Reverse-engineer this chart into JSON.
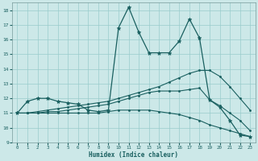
{
  "xlabel": "Humidex (Indice chaleur)",
  "xlim": [
    -0.5,
    23.5
  ],
  "ylim": [
    9,
    18.5
  ],
  "yticks": [
    9,
    10,
    11,
    12,
    13,
    14,
    15,
    16,
    17,
    18
  ],
  "xticks": [
    0,
    1,
    2,
    3,
    4,
    5,
    6,
    7,
    8,
    9,
    10,
    11,
    12,
    13,
    14,
    15,
    16,
    17,
    18,
    19,
    20,
    21,
    22,
    23
  ],
  "bg_color": "#cce8e8",
  "grid_color": "#99cccc",
  "line_color": "#1a6060",
  "series": [
    {
      "x": [
        0,
        1,
        2,
        3,
        4,
        5,
        6,
        7,
        8,
        9,
        10,
        11,
        12,
        13,
        14,
        15,
        16,
        17,
        18,
        19,
        20,
        21,
        22,
        23
      ],
      "y": [
        11.0,
        11.8,
        12.0,
        12.0,
        11.8,
        11.7,
        11.6,
        11.2,
        11.1,
        11.2,
        16.8,
        18.2,
        16.5,
        15.1,
        15.1,
        15.1,
        15.9,
        17.4,
        16.1,
        11.9,
        11.4,
        10.5,
        9.5,
        9.4
      ],
      "marker": "*",
      "markersize": 3.5,
      "lw": 0.9
    },
    {
      "x": [
        0,
        1,
        2,
        3,
        4,
        5,
        6,
        7,
        8,
        9,
        10,
        11,
        12,
        13,
        14,
        15,
        16,
        17,
        18,
        19,
        20,
        21,
        22,
        23
      ],
      "y": [
        11.0,
        11.0,
        11.1,
        11.2,
        11.3,
        11.4,
        11.5,
        11.6,
        11.7,
        11.8,
        12.0,
        12.2,
        12.4,
        12.6,
        12.8,
        13.1,
        13.4,
        13.7,
        13.9,
        13.9,
        13.5,
        12.8,
        12.0,
        11.2
      ],
      "marker": "o",
      "markersize": 1.5,
      "lw": 0.8
    },
    {
      "x": [
        0,
        1,
        2,
        3,
        4,
        5,
        6,
        7,
        8,
        9,
        10,
        11,
        12,
        13,
        14,
        15,
        16,
        17,
        18,
        19,
        20,
        21,
        22,
        23
      ],
      "y": [
        11.0,
        11.0,
        11.0,
        11.1,
        11.1,
        11.2,
        11.3,
        11.4,
        11.5,
        11.6,
        11.8,
        12.0,
        12.2,
        12.4,
        12.5,
        12.5,
        12.5,
        12.6,
        12.7,
        11.9,
        11.5,
        11.0,
        10.5,
        9.8
      ],
      "marker": "o",
      "markersize": 1.5,
      "lw": 0.8
    },
    {
      "x": [
        0,
        1,
        2,
        3,
        4,
        5,
        6,
        7,
        8,
        9,
        10,
        11,
        12,
        13,
        14,
        15,
        16,
        17,
        18,
        19,
        20,
        21,
        22,
        23
      ],
      "y": [
        11.0,
        11.0,
        11.0,
        11.0,
        11.0,
        11.0,
        11.0,
        11.0,
        11.0,
        11.1,
        11.2,
        11.2,
        11.2,
        11.2,
        11.1,
        11.0,
        10.9,
        10.7,
        10.5,
        10.2,
        10.0,
        9.8,
        9.6,
        9.4
      ],
      "marker": "o",
      "markersize": 1.5,
      "lw": 0.8
    }
  ]
}
